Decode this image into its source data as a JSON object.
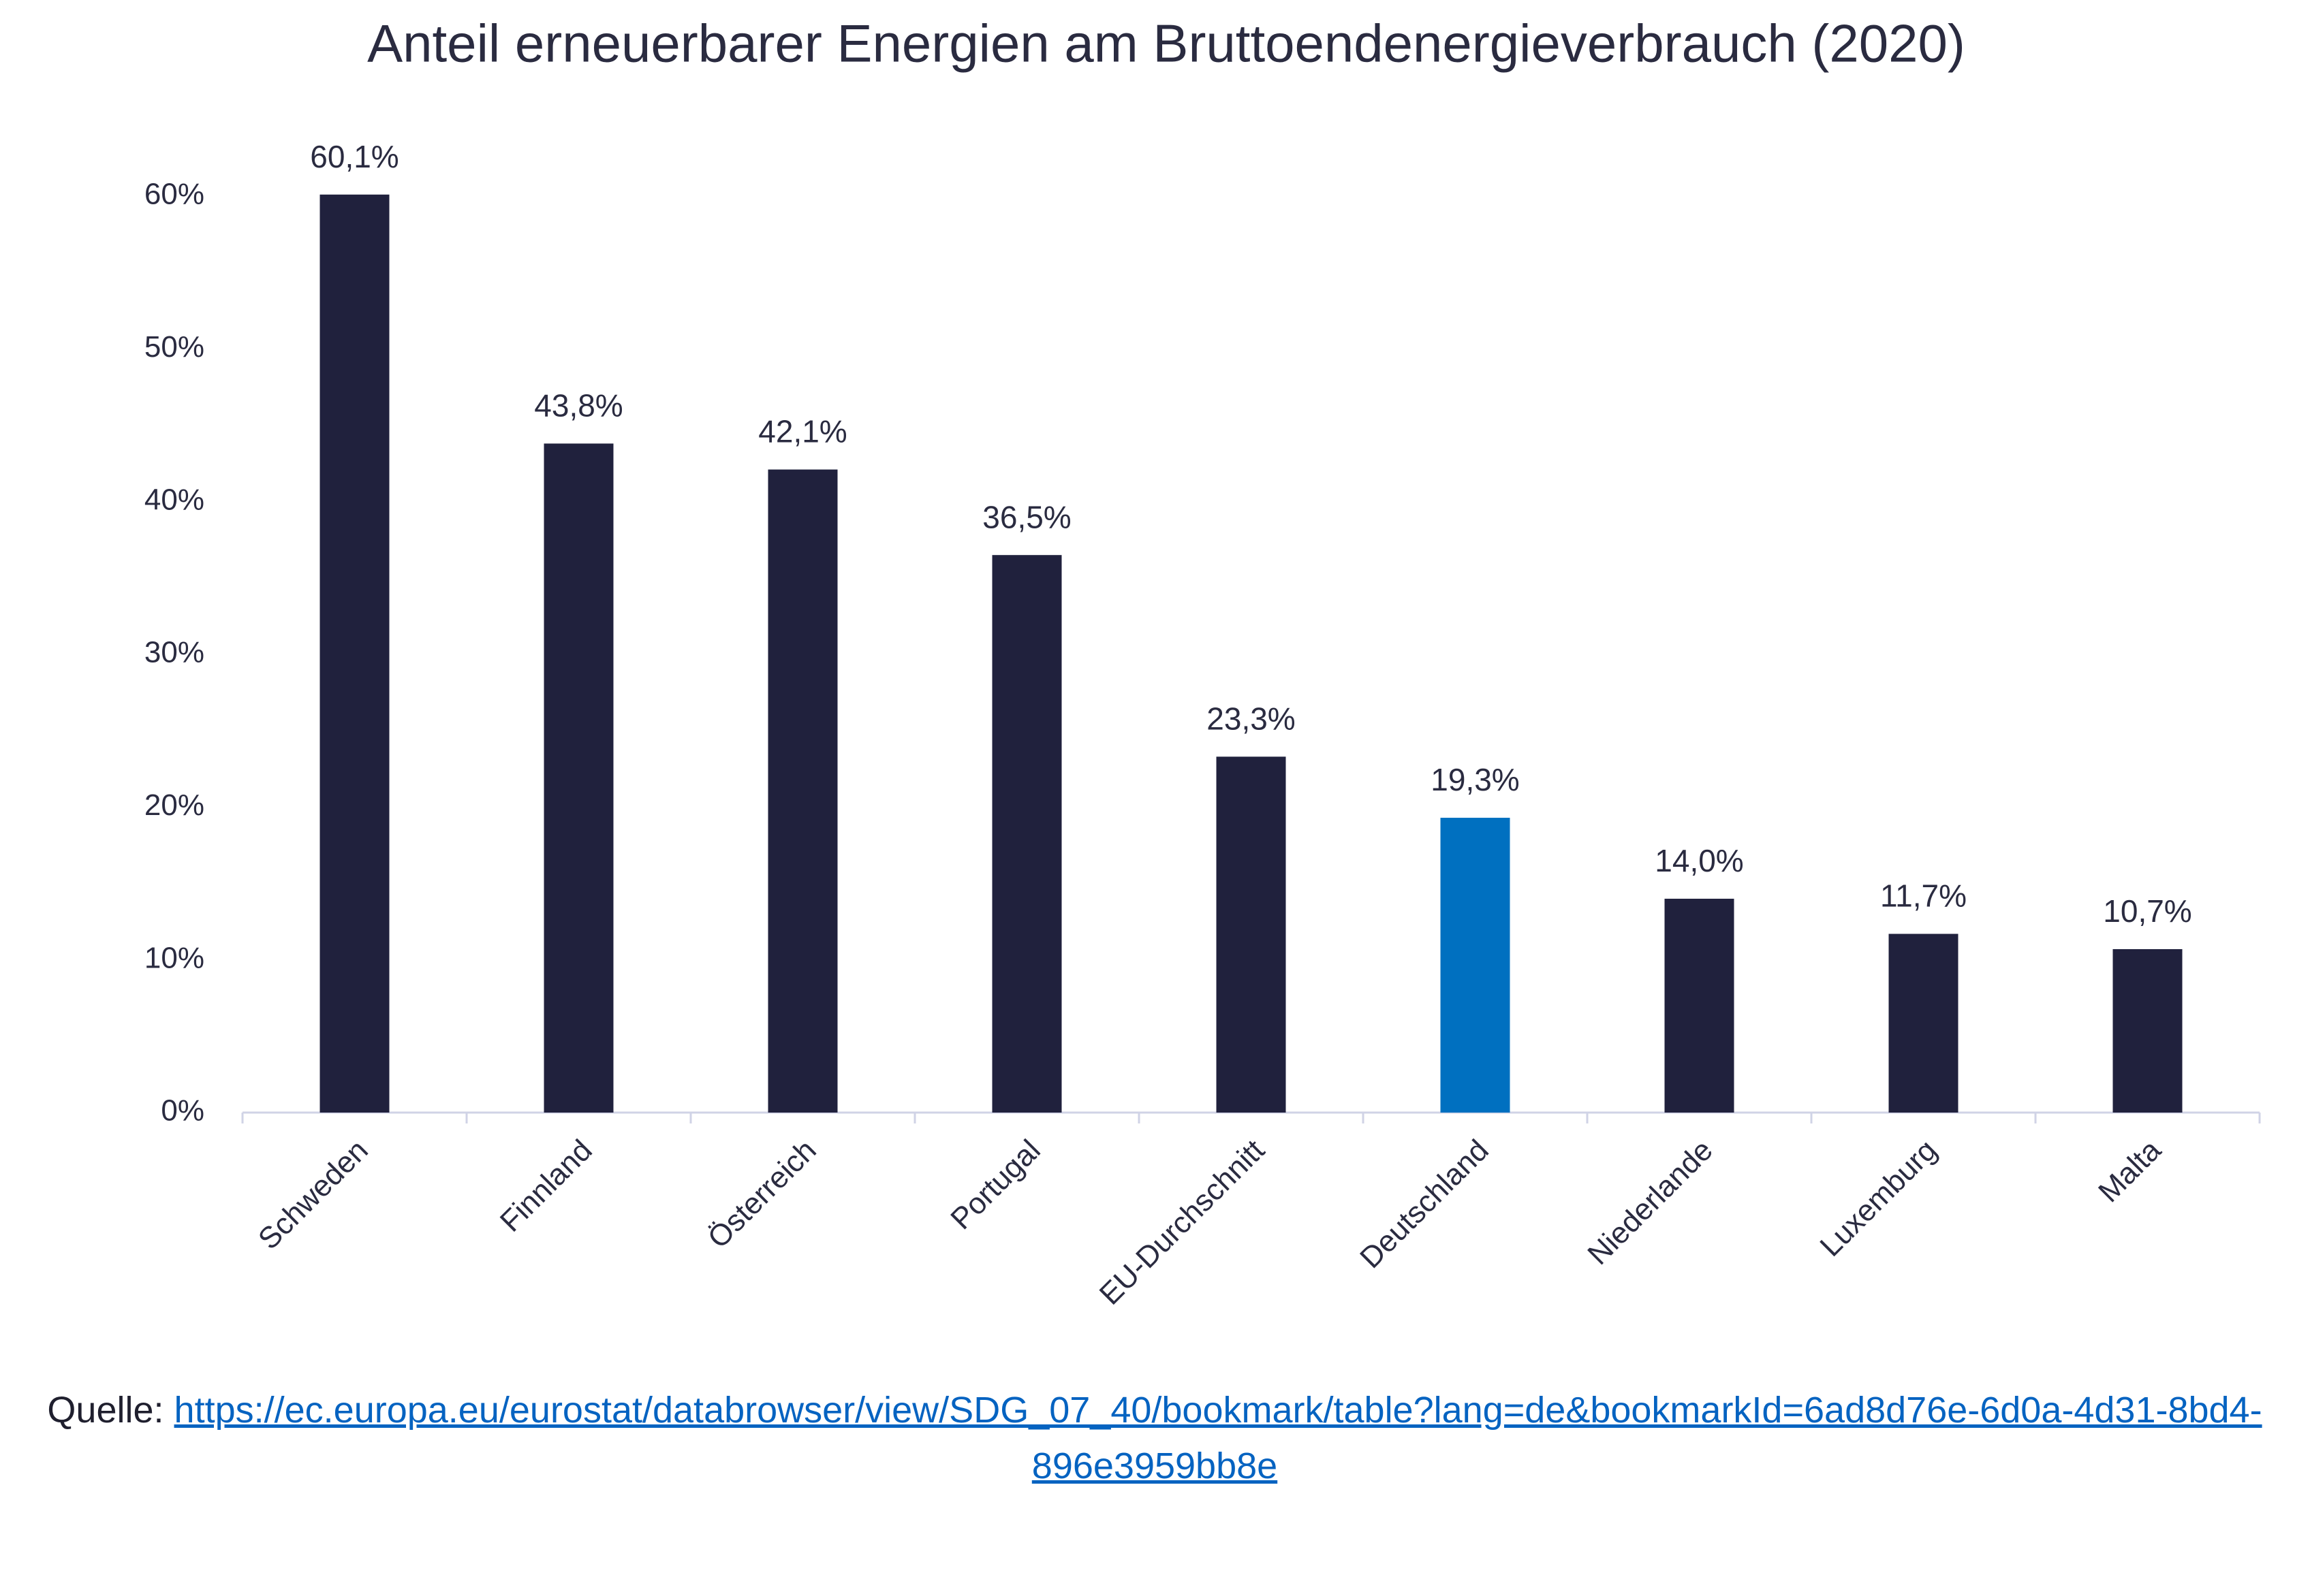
{
  "chart_data": {
    "type": "bar",
    "title": "Anteil erneuerbarer Energien am Bruttoendenergieverbrauch (2020)",
    "categories": [
      "Schweden",
      "Finnland",
      "Österreich",
      "Portugal",
      "EU-Durchschnitt",
      "Deutschland",
      "Niederlande",
      "Luxemburg",
      "Malta"
    ],
    "values": [
      60.1,
      43.8,
      42.1,
      36.5,
      23.3,
      19.3,
      14.0,
      11.7,
      10.7
    ],
    "value_labels": [
      "60,1%",
      "43,8%",
      "42,1%",
      "36,5%",
      "23,3%",
      "19,3%",
      "14,0%",
      "11,7%",
      "10,7%"
    ],
    "colors": [
      "#20213d",
      "#20213d",
      "#20213d",
      "#20213d",
      "#20213d",
      "#0070c0",
      "#20213d",
      "#20213d",
      "#20213d"
    ],
    "ylim": [
      0,
      60
    ],
    "yticks": [
      {
        "value": 0,
        "label": "0%"
      },
      {
        "value": 10,
        "label": "10%"
      },
      {
        "value": 20,
        "label": "20%"
      },
      {
        "value": 30,
        "label": "30%"
      },
      {
        "value": 40,
        "label": "40%"
      },
      {
        "value": 50,
        "label": "50%"
      },
      {
        "value": 60,
        "label": "60%"
      }
    ],
    "grid": false
  },
  "source": {
    "label": "Quelle:",
    "url": "https://ec.europa.eu/eurostat/databrowser/view/SDG_07_40/bookmark/table?lang=de&bookmarkId=6ad8d76e-6d0a-4d31-8bd4-896e3959bb8e"
  }
}
